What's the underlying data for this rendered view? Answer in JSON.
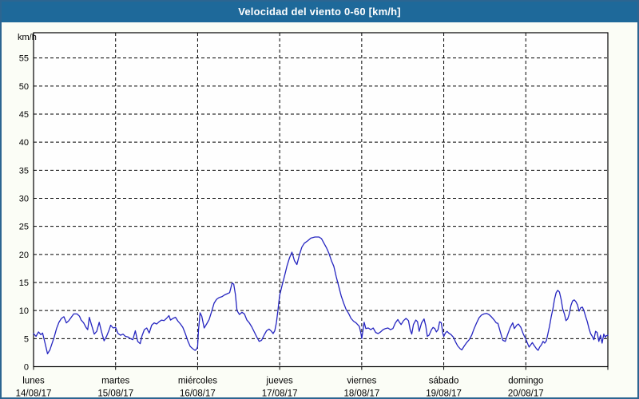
{
  "window": {
    "title": "Velocidad del viento 0-60 [km/h]"
  },
  "colors": {
    "titlebar_bg": "#1e699a",
    "window_border": "#2c6591",
    "content_bg": "#fbfdf6",
    "plot_bg": "#fefefe",
    "grid": "#000000",
    "line": "#2525c0"
  },
  "chart_data": {
    "type": "line",
    "title": "Velocidad del viento 0-60 [km/h]",
    "ylabel": "km/h",
    "xlabel": "",
    "ylim": [
      0,
      60
    ],
    "ytick_interval": 5,
    "yticks": [
      0,
      5,
      10,
      15,
      20,
      25,
      30,
      35,
      40,
      45,
      50,
      55
    ],
    "grid": "dashed",
    "legend_position": "none",
    "x_days": [
      {
        "name": "lunes",
        "date": "14/08/17"
      },
      {
        "name": "martes",
        "date": "15/08/17"
      },
      {
        "name": "miércoles",
        "date": "16/08/17"
      },
      {
        "name": "jueves",
        "date": "17/08/17"
      },
      {
        "name": "viernes",
        "date": "18/08/17"
      },
      {
        "name": "sábado",
        "date": "19/08/17"
      },
      {
        "name": "domingo",
        "date": "20/08/17"
      }
    ],
    "series": [
      {
        "name": "Velocidad del viento",
        "color": "#2525c0",
        "x_unit": "days_from_start",
        "points": [
          [
            0.0,
            5.9
          ],
          [
            0.03,
            5.4
          ],
          [
            0.06,
            6.2
          ],
          [
            0.09,
            5.7
          ],
          [
            0.11,
            6.0
          ],
          [
            0.14,
            4.2
          ],
          [
            0.17,
            2.3
          ],
          [
            0.2,
            3.0
          ],
          [
            0.22,
            3.9
          ],
          [
            0.25,
            5.2
          ],
          [
            0.28,
            6.8
          ],
          [
            0.31,
            7.9
          ],
          [
            0.34,
            8.6
          ],
          [
            0.37,
            8.9
          ],
          [
            0.4,
            7.8
          ],
          [
            0.43,
            8.2
          ],
          [
            0.46,
            8.8
          ],
          [
            0.49,
            9.4
          ],
          [
            0.53,
            9.4
          ],
          [
            0.56,
            9.0
          ],
          [
            0.58,
            8.3
          ],
          [
            0.61,
            7.8
          ],
          [
            0.64,
            7.0
          ],
          [
            0.66,
            6.6
          ],
          [
            0.68,
            8.8
          ],
          [
            0.71,
            7.3
          ],
          [
            0.74,
            5.8
          ],
          [
            0.77,
            6.3
          ],
          [
            0.8,
            7.9
          ],
          [
            0.83,
            6.1
          ],
          [
            0.86,
            4.6
          ],
          [
            0.89,
            5.4
          ],
          [
            0.92,
            6.5
          ],
          [
            0.94,
            7.4
          ],
          [
            0.97,
            6.9
          ],
          [
            1.0,
            7.0
          ],
          [
            1.03,
            5.9
          ],
          [
            1.06,
            5.6
          ],
          [
            1.09,
            5.8
          ],
          [
            1.12,
            5.4
          ],
          [
            1.15,
            5.3
          ],
          [
            1.18,
            5.0
          ],
          [
            1.21,
            4.8
          ],
          [
            1.24,
            6.4
          ],
          [
            1.27,
            4.5
          ],
          [
            1.3,
            4.1
          ],
          [
            1.32,
            5.4
          ],
          [
            1.35,
            6.6
          ],
          [
            1.38,
            6.9
          ],
          [
            1.41,
            6.0
          ],
          [
            1.44,
            7.4
          ],
          [
            1.47,
            7.8
          ],
          [
            1.5,
            7.6
          ],
          [
            1.53,
            8.0
          ],
          [
            1.56,
            8.3
          ],
          [
            1.59,
            8.2
          ],
          [
            1.62,
            8.6
          ],
          [
            1.65,
            9.1
          ],
          [
            1.67,
            8.3
          ],
          [
            1.7,
            8.6
          ],
          [
            1.73,
            8.8
          ],
          [
            1.76,
            8.1
          ],
          [
            1.79,
            7.6
          ],
          [
            1.82,
            7.0
          ],
          [
            1.85,
            5.9
          ],
          [
            1.88,
            4.6
          ],
          [
            1.91,
            3.6
          ],
          [
            1.94,
            3.2
          ],
          [
            1.97,
            2.9
          ],
          [
            1.99,
            3.2
          ],
          [
            2.0,
            3.6
          ],
          [
            2.01,
            6.5
          ],
          [
            2.03,
            9.6
          ],
          [
            2.05,
            9.0
          ],
          [
            2.08,
            6.9
          ],
          [
            2.11,
            7.6
          ],
          [
            2.14,
            8.4
          ],
          [
            2.17,
            9.8
          ],
          [
            2.2,
            11.3
          ],
          [
            2.23,
            12.0
          ],
          [
            2.26,
            12.3
          ],
          [
            2.3,
            12.5
          ],
          [
            2.33,
            12.8
          ],
          [
            2.36,
            13.0
          ],
          [
            2.39,
            13.2
          ],
          [
            2.42,
            14.9
          ],
          [
            2.44,
            14.7
          ],
          [
            2.46,
            12.9
          ],
          [
            2.48,
            10.0
          ],
          [
            2.51,
            9.3
          ],
          [
            2.54,
            9.7
          ],
          [
            2.57,
            9.4
          ],
          [
            2.6,
            8.3
          ],
          [
            2.63,
            7.8
          ],
          [
            2.66,
            7.1
          ],
          [
            2.69,
            6.2
          ],
          [
            2.72,
            5.3
          ],
          [
            2.75,
            4.5
          ],
          [
            2.78,
            4.7
          ],
          [
            2.81,
            5.6
          ],
          [
            2.84,
            6.4
          ],
          [
            2.87,
            6.7
          ],
          [
            2.9,
            6.3
          ],
          [
            2.92,
            5.9
          ],
          [
            2.94,
            6.4
          ],
          [
            2.96,
            7.8
          ],
          [
            2.98,
            10.2
          ],
          [
            3.0,
            12.7
          ],
          [
            3.03,
            14.5
          ],
          [
            3.06,
            16.2
          ],
          [
            3.09,
            18.0
          ],
          [
            3.12,
            19.4
          ],
          [
            3.15,
            20.4
          ],
          [
            3.18,
            18.9
          ],
          [
            3.21,
            18.2
          ],
          [
            3.24,
            19.9
          ],
          [
            3.27,
            21.3
          ],
          [
            3.3,
            22.0
          ],
          [
            3.34,
            22.4
          ],
          [
            3.38,
            22.9
          ],
          [
            3.43,
            23.1
          ],
          [
            3.48,
            23.1
          ],
          [
            3.51,
            22.8
          ],
          [
            3.54,
            22.0
          ],
          [
            3.57,
            21.2
          ],
          [
            3.6,
            20.2
          ],
          [
            3.63,
            18.9
          ],
          [
            3.66,
            17.9
          ],
          [
            3.69,
            16.0
          ],
          [
            3.72,
            14.3
          ],
          [
            3.75,
            12.6
          ],
          [
            3.78,
            11.3
          ],
          [
            3.81,
            10.2
          ],
          [
            3.84,
            9.5
          ],
          [
            3.87,
            8.6
          ],
          [
            3.9,
            8.1
          ],
          [
            3.93,
            7.8
          ],
          [
            3.95,
            7.5
          ],
          [
            3.97,
            7.2
          ],
          [
            3.99,
            6.0
          ],
          [
            4.0,
            5.0
          ],
          [
            4.03,
            7.9
          ],
          [
            4.05,
            6.8
          ],
          [
            4.08,
            6.9
          ],
          [
            4.11,
            6.6
          ],
          [
            4.14,
            6.9
          ],
          [
            4.17,
            6.1
          ],
          [
            4.2,
            5.9
          ],
          [
            4.23,
            6.2
          ],
          [
            4.26,
            6.6
          ],
          [
            4.29,
            6.8
          ],
          [
            4.32,
            6.9
          ],
          [
            4.35,
            6.6
          ],
          [
            4.38,
            6.8
          ],
          [
            4.41,
            7.8
          ],
          [
            4.44,
            8.4
          ],
          [
            4.46,
            7.9
          ],
          [
            4.48,
            7.5
          ],
          [
            4.51,
            8.2
          ],
          [
            4.54,
            8.6
          ],
          [
            4.57,
            8.2
          ],
          [
            4.59,
            6.6
          ],
          [
            4.61,
            5.8
          ],
          [
            4.63,
            7.5
          ],
          [
            4.66,
            8.3
          ],
          [
            4.68,
            8.0
          ],
          [
            4.7,
            6.3
          ],
          [
            4.73,
            7.8
          ],
          [
            4.76,
            8.5
          ],
          [
            4.78,
            7.3
          ],
          [
            4.8,
            5.4
          ],
          [
            4.82,
            5.6
          ],
          [
            4.85,
            6.6
          ],
          [
            4.87,
            7.0
          ],
          [
            4.89,
            6.8
          ],
          [
            4.91,
            6.2
          ],
          [
            4.93,
            6.6
          ],
          [
            4.95,
            8.0
          ],
          [
            4.97,
            7.8
          ],
          [
            4.99,
            5.9
          ],
          [
            5.0,
            5.4
          ],
          [
            5.02,
            6.0
          ],
          [
            5.04,
            6.3
          ],
          [
            5.06,
            6.0
          ],
          [
            5.09,
            5.7
          ],
          [
            5.12,
            5.2
          ],
          [
            5.14,
            4.5
          ],
          [
            5.17,
            3.7
          ],
          [
            5.2,
            3.2
          ],
          [
            5.22,
            3.0
          ],
          [
            5.25,
            3.7
          ],
          [
            5.28,
            4.3
          ],
          [
            5.31,
            4.8
          ],
          [
            5.34,
            5.6
          ],
          [
            5.37,
            6.8
          ],
          [
            5.4,
            7.8
          ],
          [
            5.43,
            8.7
          ],
          [
            5.46,
            9.2
          ],
          [
            5.49,
            9.4
          ],
          [
            5.52,
            9.5
          ],
          [
            5.55,
            9.3
          ],
          [
            5.58,
            8.9
          ],
          [
            5.61,
            8.4
          ],
          [
            5.64,
            7.8
          ],
          [
            5.66,
            7.7
          ],
          [
            5.69,
            6.2
          ],
          [
            5.72,
            4.7
          ],
          [
            5.75,
            4.5
          ],
          [
            5.78,
            5.8
          ],
          [
            5.81,
            7.0
          ],
          [
            5.84,
            7.8
          ],
          [
            5.86,
            6.8
          ],
          [
            5.89,
            7.4
          ],
          [
            5.91,
            7.6
          ],
          [
            5.94,
            7.0
          ],
          [
            5.97,
            5.8
          ],
          [
            6.0,
            4.9
          ],
          [
            6.02,
            4.2
          ],
          [
            6.04,
            3.5
          ],
          [
            6.06,
            3.9
          ],
          [
            6.08,
            4.3
          ],
          [
            6.1,
            3.8
          ],
          [
            6.13,
            3.2
          ],
          [
            6.15,
            2.9
          ],
          [
            6.17,
            3.5
          ],
          [
            6.19,
            3.9
          ],
          [
            6.21,
            4.5
          ],
          [
            6.23,
            4.2
          ],
          [
            6.25,
            4.6
          ],
          [
            6.27,
            5.9
          ],
          [
            6.29,
            7.3
          ],
          [
            6.31,
            8.9
          ],
          [
            6.33,
            10.3
          ],
          [
            6.35,
            12.0
          ],
          [
            6.37,
            13.2
          ],
          [
            6.39,
            13.6
          ],
          [
            6.41,
            13.3
          ],
          [
            6.43,
            12.0
          ],
          [
            6.45,
            10.3
          ],
          [
            6.47,
            9.4
          ],
          [
            6.49,
            8.2
          ],
          [
            6.51,
            8.5
          ],
          [
            6.53,
            9.4
          ],
          [
            6.55,
            10.9
          ],
          [
            6.57,
            11.7
          ],
          [
            6.59,
            11.9
          ],
          [
            6.61,
            11.6
          ],
          [
            6.63,
            11.0
          ],
          [
            6.65,
            9.9
          ],
          [
            6.67,
            10.5
          ],
          [
            6.69,
            10.6
          ],
          [
            6.71,
            9.9
          ],
          [
            6.73,
            8.9
          ],
          [
            6.75,
            8.0
          ],
          [
            6.77,
            6.8
          ],
          [
            6.79,
            5.9
          ],
          [
            6.81,
            5.4
          ],
          [
            6.83,
            4.8
          ],
          [
            6.85,
            6.3
          ],
          [
            6.87,
            6.1
          ],
          [
            6.89,
            4.5
          ],
          [
            6.91,
            5.6
          ],
          [
            6.93,
            4.2
          ],
          [
            6.95,
            5.8
          ],
          [
            6.97,
            5.2
          ],
          [
            6.98,
            5.5
          ],
          [
            7.0,
            5.6
          ]
        ]
      }
    ]
  }
}
